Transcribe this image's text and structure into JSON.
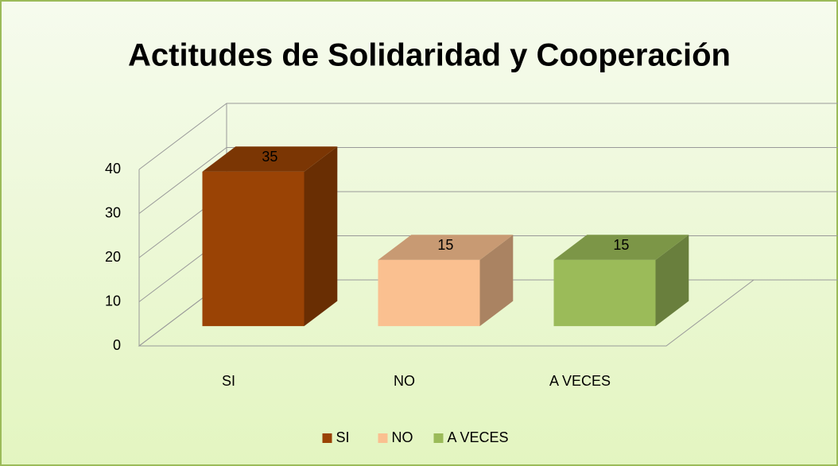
{
  "chart_data": {
    "type": "bar3d",
    "title": "Actitudes de Solidaridad y Cooperación",
    "categories": [
      "SI",
      "NO",
      "A VECES"
    ],
    "values": [
      35,
      15,
      15
    ],
    "colors": [
      "#9a4305",
      "#fac090",
      "#9bbb59"
    ],
    "ylim": [
      0,
      40
    ],
    "yticks": [
      0,
      10,
      20,
      30,
      40
    ],
    "grid": true,
    "legend": "bottom"
  }
}
